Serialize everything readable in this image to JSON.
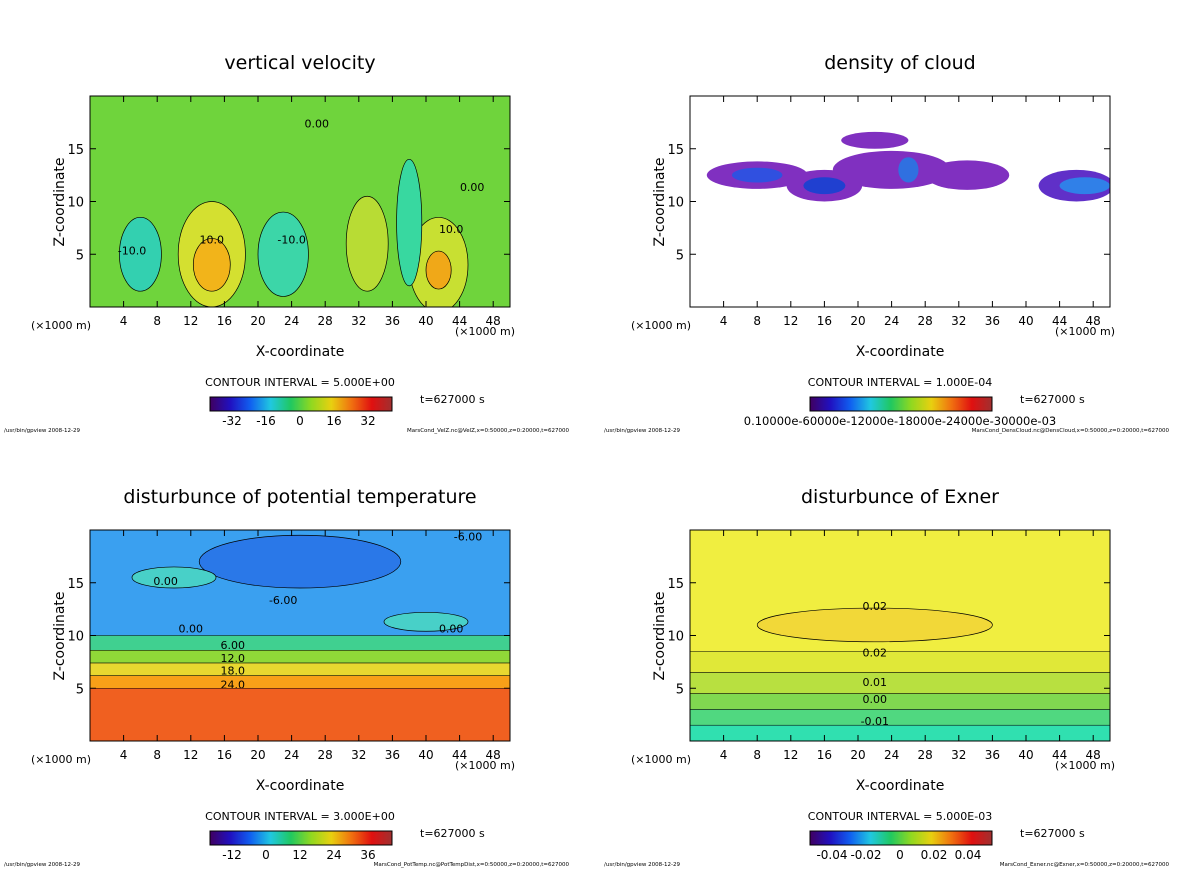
{
  "chart_data": [
    {
      "type": "heatmap",
      "title": "vertical velocity",
      "xlabel": "X-coordinate",
      "ylabel": "Z-coordinate",
      "x_unit": "(×1000 m)",
      "xlim": [
        0,
        50
      ],
      "ylim": [
        0,
        20
      ],
      "xticks": [
        "4",
        "8",
        "12",
        "16",
        "20",
        "24",
        "28",
        "32",
        "36",
        "40",
        "44",
        "48"
      ],
      "yticks": [
        "5",
        "10",
        "15"
      ],
      "contour_interval": "CONTOUR INTERVAL = 5.000E+00",
      "colorbar_ticks": [
        "-32",
        "-16",
        "0",
        "16",
        "32"
      ],
      "time": "t=627000 s",
      "footer_left": "/usr/bin/gpview  2008-12-29",
      "footer_right": "MarsCond_VelZ.nc@VelZ,x=0:50000,z=0:20000,t=627000",
      "contour_labels": [
        "-10.0",
        "10.0",
        "-10.0",
        "10.0",
        "0.00",
        "0.00"
      ]
    },
    {
      "type": "heatmap",
      "title": "density of cloud",
      "xlabel": "X-coordinate",
      "ylabel": "Z-coordinate",
      "x_unit": "(×1000 m)",
      "xlim": [
        0,
        50
      ],
      "ylim": [
        0,
        20
      ],
      "xticks": [
        "4",
        "8",
        "12",
        "16",
        "20",
        "24",
        "28",
        "32",
        "36",
        "40",
        "44",
        "48"
      ],
      "yticks": [
        "5",
        "10",
        "15"
      ],
      "contour_interval": "CONTOUR INTERVAL = 1.000E-04",
      "colorbar_ticks": [
        "0.10000e-60000e-12000e-18000e-24000e-30000e-03"
      ],
      "time": "t=627000 s",
      "footer_left": "/usr/bin/gpview  2008-12-29",
      "footer_right": "MarsCond_DensCloud.nc@DensCloud,x=0:50000,z=0:20000,t=627000",
      "contour_labels": []
    },
    {
      "type": "heatmap",
      "title": "disturbunce of potential temperature",
      "xlabel": "X-coordinate",
      "ylabel": "Z-coordinate",
      "x_unit": "(×1000 m)",
      "xlim": [
        0,
        50
      ],
      "ylim": [
        0,
        20
      ],
      "xticks": [
        "4",
        "8",
        "12",
        "16",
        "20",
        "24",
        "28",
        "32",
        "36",
        "40",
        "44",
        "48"
      ],
      "yticks": [
        "5",
        "10",
        "15"
      ],
      "contour_interval": "CONTOUR INTERVAL = 3.000E+00",
      "colorbar_ticks": [
        "-12",
        "0",
        "12",
        "24",
        "36"
      ],
      "time": "t=627000 s",
      "footer_left": "/usr/bin/gpview  2008-12-29",
      "footer_right": "MarsCond_PotTemp.nc@PotTempDist,x=0:50000,z=0:20000,t=627000",
      "contour_labels": [
        "-6.00",
        "-6.00",
        "0.00",
        "0.00",
        "0.00",
        "6.00",
        "12.0",
        "18.0",
        "24.0"
      ]
    },
    {
      "type": "heatmap",
      "title": "disturbunce of Exner",
      "xlabel": "X-coordinate",
      "ylabel": "Z-coordinate",
      "x_unit": "(×1000 m)",
      "xlim": [
        0,
        50
      ],
      "ylim": [
        0,
        20
      ],
      "xticks": [
        "4",
        "8",
        "12",
        "16",
        "20",
        "24",
        "28",
        "32",
        "36",
        "40",
        "44",
        "48"
      ],
      "yticks": [
        "5",
        "10",
        "15"
      ],
      "contour_interval": "CONTOUR INTERVAL = 5.000E-03",
      "colorbar_ticks": [
        "-0.04",
        "-0.02",
        "0",
        "0.02",
        "0.04"
      ],
      "time": "t=627000 s",
      "footer_left": "/usr/bin/gpview  2008-12-29",
      "footer_right": "MarsCond_Exner.nc@Exner,x=0:50000,z=0:20000,t=627000",
      "contour_labels": [
        "0.02",
        "0.02",
        "0.01",
        "0.00",
        "-0.01"
      ]
    }
  ]
}
